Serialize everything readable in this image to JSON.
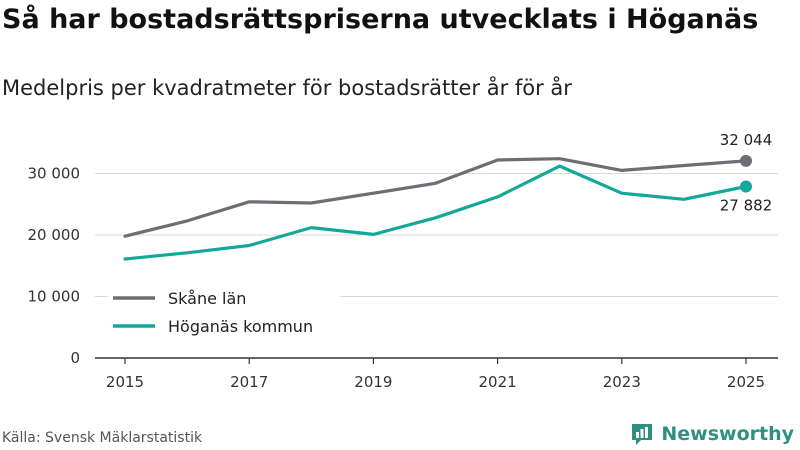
{
  "title": "Så har bostadsrättspriserna utvecklats i Höganäs",
  "subtitle": "Medelpris per kvadratmeter för bostadsrätter år för år",
  "source": "Källa: Svensk Mäklarstatistik",
  "brand": {
    "name": "Newsworthy",
    "icon": "newsworthy-logo-icon",
    "color": "#2f8f86"
  },
  "chart_data": {
    "type": "line",
    "title": "Så har bostadsrättspriserna utvecklats i Höganäs",
    "subtitle": "Medelpris per kvadratmeter för bostadsrätter år för år",
    "xlabel": "",
    "ylabel": "",
    "x": [
      2015,
      2016,
      2017,
      2018,
      2019,
      2020,
      2021,
      2022,
      2023,
      2024,
      2025
    ],
    "xticks": [
      2015,
      2017,
      2019,
      2021,
      2023,
      2025
    ],
    "yticks": [
      0,
      10000,
      20000,
      30000
    ],
    "ytick_labels": [
      "0",
      "10 000",
      "20 000",
      "30 000"
    ],
    "ylim": [
      0,
      34000
    ],
    "grid": true,
    "legend": "bottom-left",
    "series": [
      {
        "name": "Skåne län",
        "color": "#6e6d73",
        "values": [
          19800,
          22300,
          25400,
          25200,
          26800,
          28400,
          32200,
          32400,
          30500,
          31300,
          32044
        ],
        "end_label": "32 044"
      },
      {
        "name": "Höganäs kommun",
        "color": "#13a89a",
        "values": [
          16100,
          17100,
          18300,
          21200,
          20100,
          22800,
          26200,
          31200,
          26800,
          25800,
          27882
        ],
        "end_label": "27 882"
      }
    ]
  }
}
